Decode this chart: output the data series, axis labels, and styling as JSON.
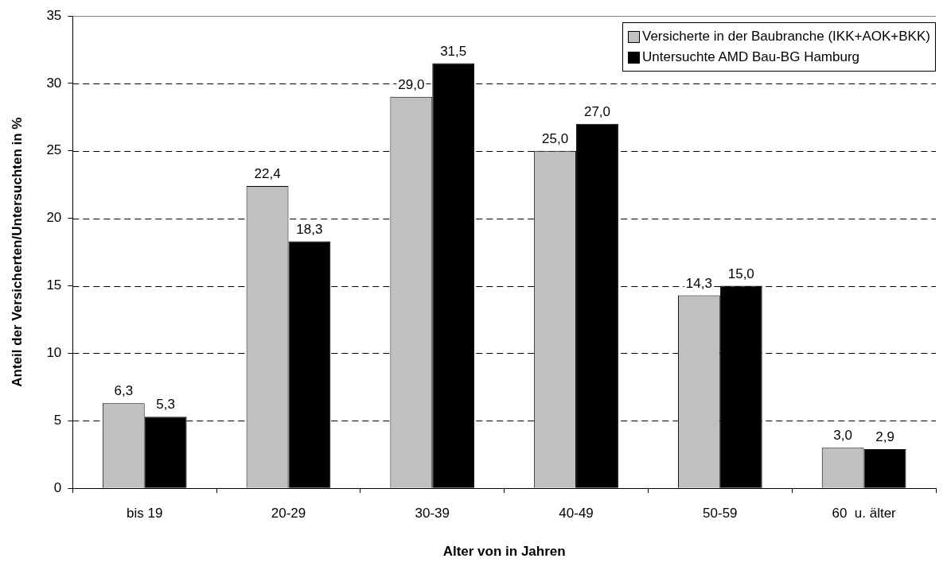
{
  "chart_data": {
    "type": "bar",
    "xlabel": "Alter von in Jahren",
    "ylabel": "Anteil der Versicherten/Untersuchten in %",
    "categories": [
      "bis 19",
      "20-29",
      "30-39",
      "40-49",
      "50-59",
      "60  u. älter"
    ],
    "series": [
      {
        "name": "Versicherte in der Baubranche (IKK+AOK+BKK)",
        "color": "#c0c0c0",
        "values": [
          6.3,
          22.4,
          29.0,
          25.0,
          14.3,
          3.0
        ],
        "value_labels": [
          "6,3",
          "22,4",
          "29,0",
          "25,0",
          "14,3",
          "3,0"
        ]
      },
      {
        "name": "Untersuchte AMD Bau-BG Hamburg",
        "color": "#000000",
        "values": [
          5.3,
          18.3,
          31.5,
          27.0,
          15.0,
          2.9
        ],
        "value_labels": [
          "5,3",
          "18,3",
          "31,5",
          "27,0",
          "15,0",
          "2,9"
        ]
      }
    ],
    "ylim": [
      0,
      35
    ],
    "yticks": [
      0,
      5,
      10,
      15,
      20,
      25,
      30,
      35
    ],
    "grid": "y",
    "legend": "top right"
  }
}
